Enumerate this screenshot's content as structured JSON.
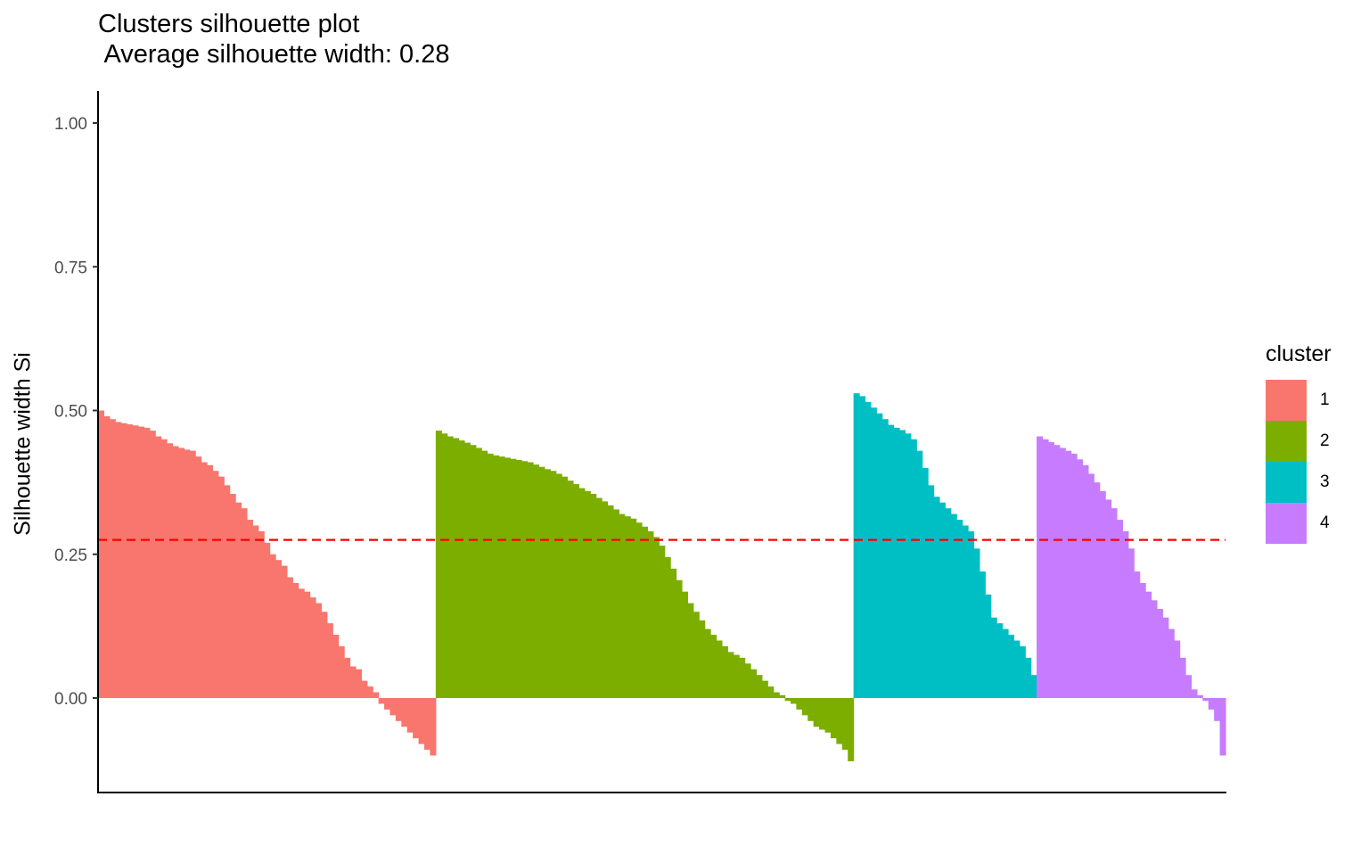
{
  "chart_data": {
    "type": "bar",
    "title": "Clusters silhouette plot\n Average silhouette width: 0.28",
    "xlabel": "",
    "ylabel": "Silhouette width Si",
    "ylim": [
      -0.165,
      1.05
    ],
    "y_ticks": [
      "0.00",
      "0.25",
      "0.50",
      "0.75",
      "1.00"
    ],
    "y_tick_values": [
      0,
      0.25,
      0.5,
      0.75,
      1.0
    ],
    "average_line": {
      "value": 0.275,
      "color": "#ff0000",
      "style": "dashed"
    },
    "grid": false,
    "legend": {
      "title": "cluster",
      "position": "right"
    },
    "series": [
      {
        "name": "1",
        "color": "#F8766D",
        "values": [
          0.5,
          0.49,
          0.485,
          0.48,
          0.478,
          0.476,
          0.474,
          0.472,
          0.47,
          0.465,
          0.455,
          0.45,
          0.443,
          0.438,
          0.435,
          0.432,
          0.43,
          0.42,
          0.41,
          0.405,
          0.395,
          0.385,
          0.37,
          0.355,
          0.34,
          0.33,
          0.31,
          0.3,
          0.29,
          0.27,
          0.25,
          0.24,
          0.23,
          0.21,
          0.2,
          0.19,
          0.185,
          0.175,
          0.165,
          0.15,
          0.13,
          0.11,
          0.09,
          0.07,
          0.055,
          0.05,
          0.03,
          0.02,
          0.01,
          -0.01,
          -0.02,
          -0.03,
          -0.04,
          -0.05,
          -0.06,
          -0.07,
          -0.08,
          -0.09,
          -0.1
        ]
      },
      {
        "name": "2",
        "color": "#7CAE00",
        "values": [
          0.465,
          0.46,
          0.455,
          0.452,
          0.448,
          0.444,
          0.44,
          0.435,
          0.43,
          0.425,
          0.422,
          0.42,
          0.418,
          0.416,
          0.414,
          0.412,
          0.41,
          0.406,
          0.402,
          0.398,
          0.395,
          0.39,
          0.385,
          0.378,
          0.372,
          0.365,
          0.36,
          0.355,
          0.348,
          0.342,
          0.335,
          0.328,
          0.32,
          0.316,
          0.312,
          0.305,
          0.298,
          0.29,
          0.28,
          0.265,
          0.245,
          0.225,
          0.205,
          0.185,
          0.165,
          0.15,
          0.135,
          0.12,
          0.11,
          0.1,
          0.09,
          0.08,
          0.075,
          0.07,
          0.06,
          0.05,
          0.04,
          0.03,
          0.02,
          0.01,
          0.005,
          -0.005,
          -0.01,
          -0.02,
          -0.03,
          -0.04,
          -0.05,
          -0.055,
          -0.06,
          -0.07,
          -0.08,
          -0.09,
          -0.11
        ]
      },
      {
        "name": "3",
        "color": "#00BFC4",
        "values": [
          0.53,
          0.525,
          0.515,
          0.505,
          0.495,
          0.485,
          0.475,
          0.47,
          0.466,
          0.46,
          0.45,
          0.43,
          0.4,
          0.37,
          0.35,
          0.34,
          0.33,
          0.32,
          0.31,
          0.3,
          0.29,
          0.26,
          0.22,
          0.18,
          0.14,
          0.13,
          0.12,
          0.11,
          0.1,
          0.09,
          0.07,
          0.04
        ]
      },
      {
        "name": "4",
        "color": "#C77CFF",
        "values": [
          0.455,
          0.45,
          0.445,
          0.44,
          0.435,
          0.43,
          0.425,
          0.415,
          0.405,
          0.39,
          0.375,
          0.36,
          0.345,
          0.33,
          0.31,
          0.29,
          0.26,
          0.22,
          0.2,
          0.185,
          0.17,
          0.155,
          0.14,
          0.12,
          0.1,
          0.07,
          0.04,
          0.015,
          0.005,
          -0.005,
          -0.02,
          -0.04,
          -0.1
        ]
      }
    ]
  }
}
